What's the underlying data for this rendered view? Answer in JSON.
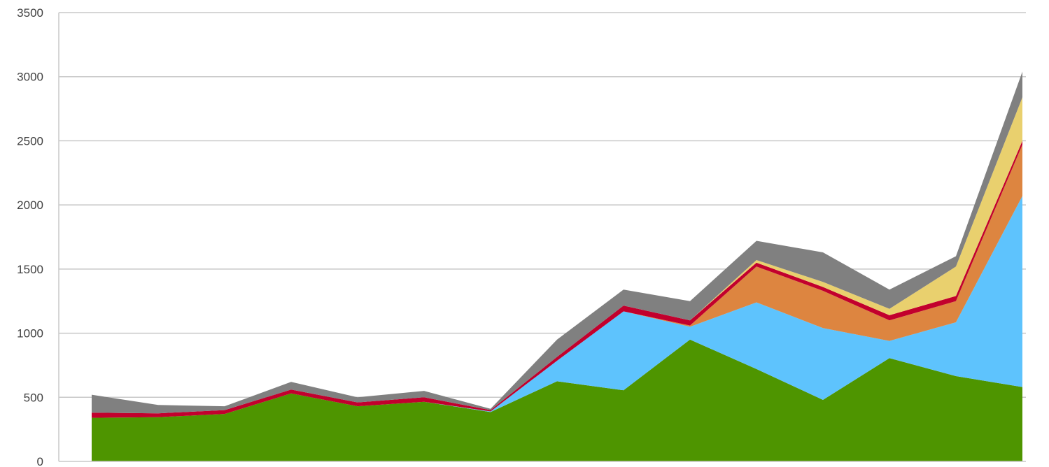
{
  "chart_data": {
    "type": "area",
    "stacked": true,
    "title": "",
    "xlabel": "",
    "ylabel": "",
    "ylim": [
      0,
      3500
    ],
    "yticks": [
      0,
      500,
      1000,
      1500,
      2000,
      2500,
      3000,
      3500
    ],
    "ytick_labels": [
      "0",
      "500",
      "1000",
      "1500",
      "2000",
      "2500",
      "3000",
      "3500"
    ],
    "grid": true,
    "legend": "none",
    "x": [
      1,
      2,
      3,
      4,
      5,
      6,
      7,
      8,
      9,
      10,
      11,
      12,
      13,
      14,
      15
    ],
    "series": [
      {
        "color": "#4E9500",
        "values": [
          340,
          345,
          370,
          530,
          430,
          465,
          385,
          625,
          555,
          950,
          720,
          480,
          805,
          665,
          580
        ]
      },
      {
        "color": "#5EC3FD",
        "values": [
          0,
          0,
          0,
          0,
          0,
          0,
          5,
          160,
          615,
          100,
          520,
          560,
          135,
          420,
          1490
        ]
      },
      {
        "color": "#DD8540",
        "values": [
          0,
          0,
          0,
          0,
          0,
          0,
          0,
          0,
          0,
          10,
          280,
          290,
          160,
          165,
          400
        ]
      },
      {
        "color": "#C2002D",
        "values": [
          40,
          30,
          30,
          30,
          30,
          35,
          10,
          30,
          45,
          40,
          30,
          30,
          40,
          40,
          30
        ]
      },
      {
        "color": "#E9D06E",
        "values": [
          0,
          0,
          0,
          0,
          0,
          0,
          0,
          0,
          0,
          0,
          20,
          40,
          50,
          230,
          340
        ]
      },
      {
        "color": "#808080",
        "values": [
          140,
          65,
          30,
          60,
          40,
          50,
          10,
          135,
          125,
          150,
          150,
          230,
          150,
          80,
          200
        ]
      }
    ]
  }
}
